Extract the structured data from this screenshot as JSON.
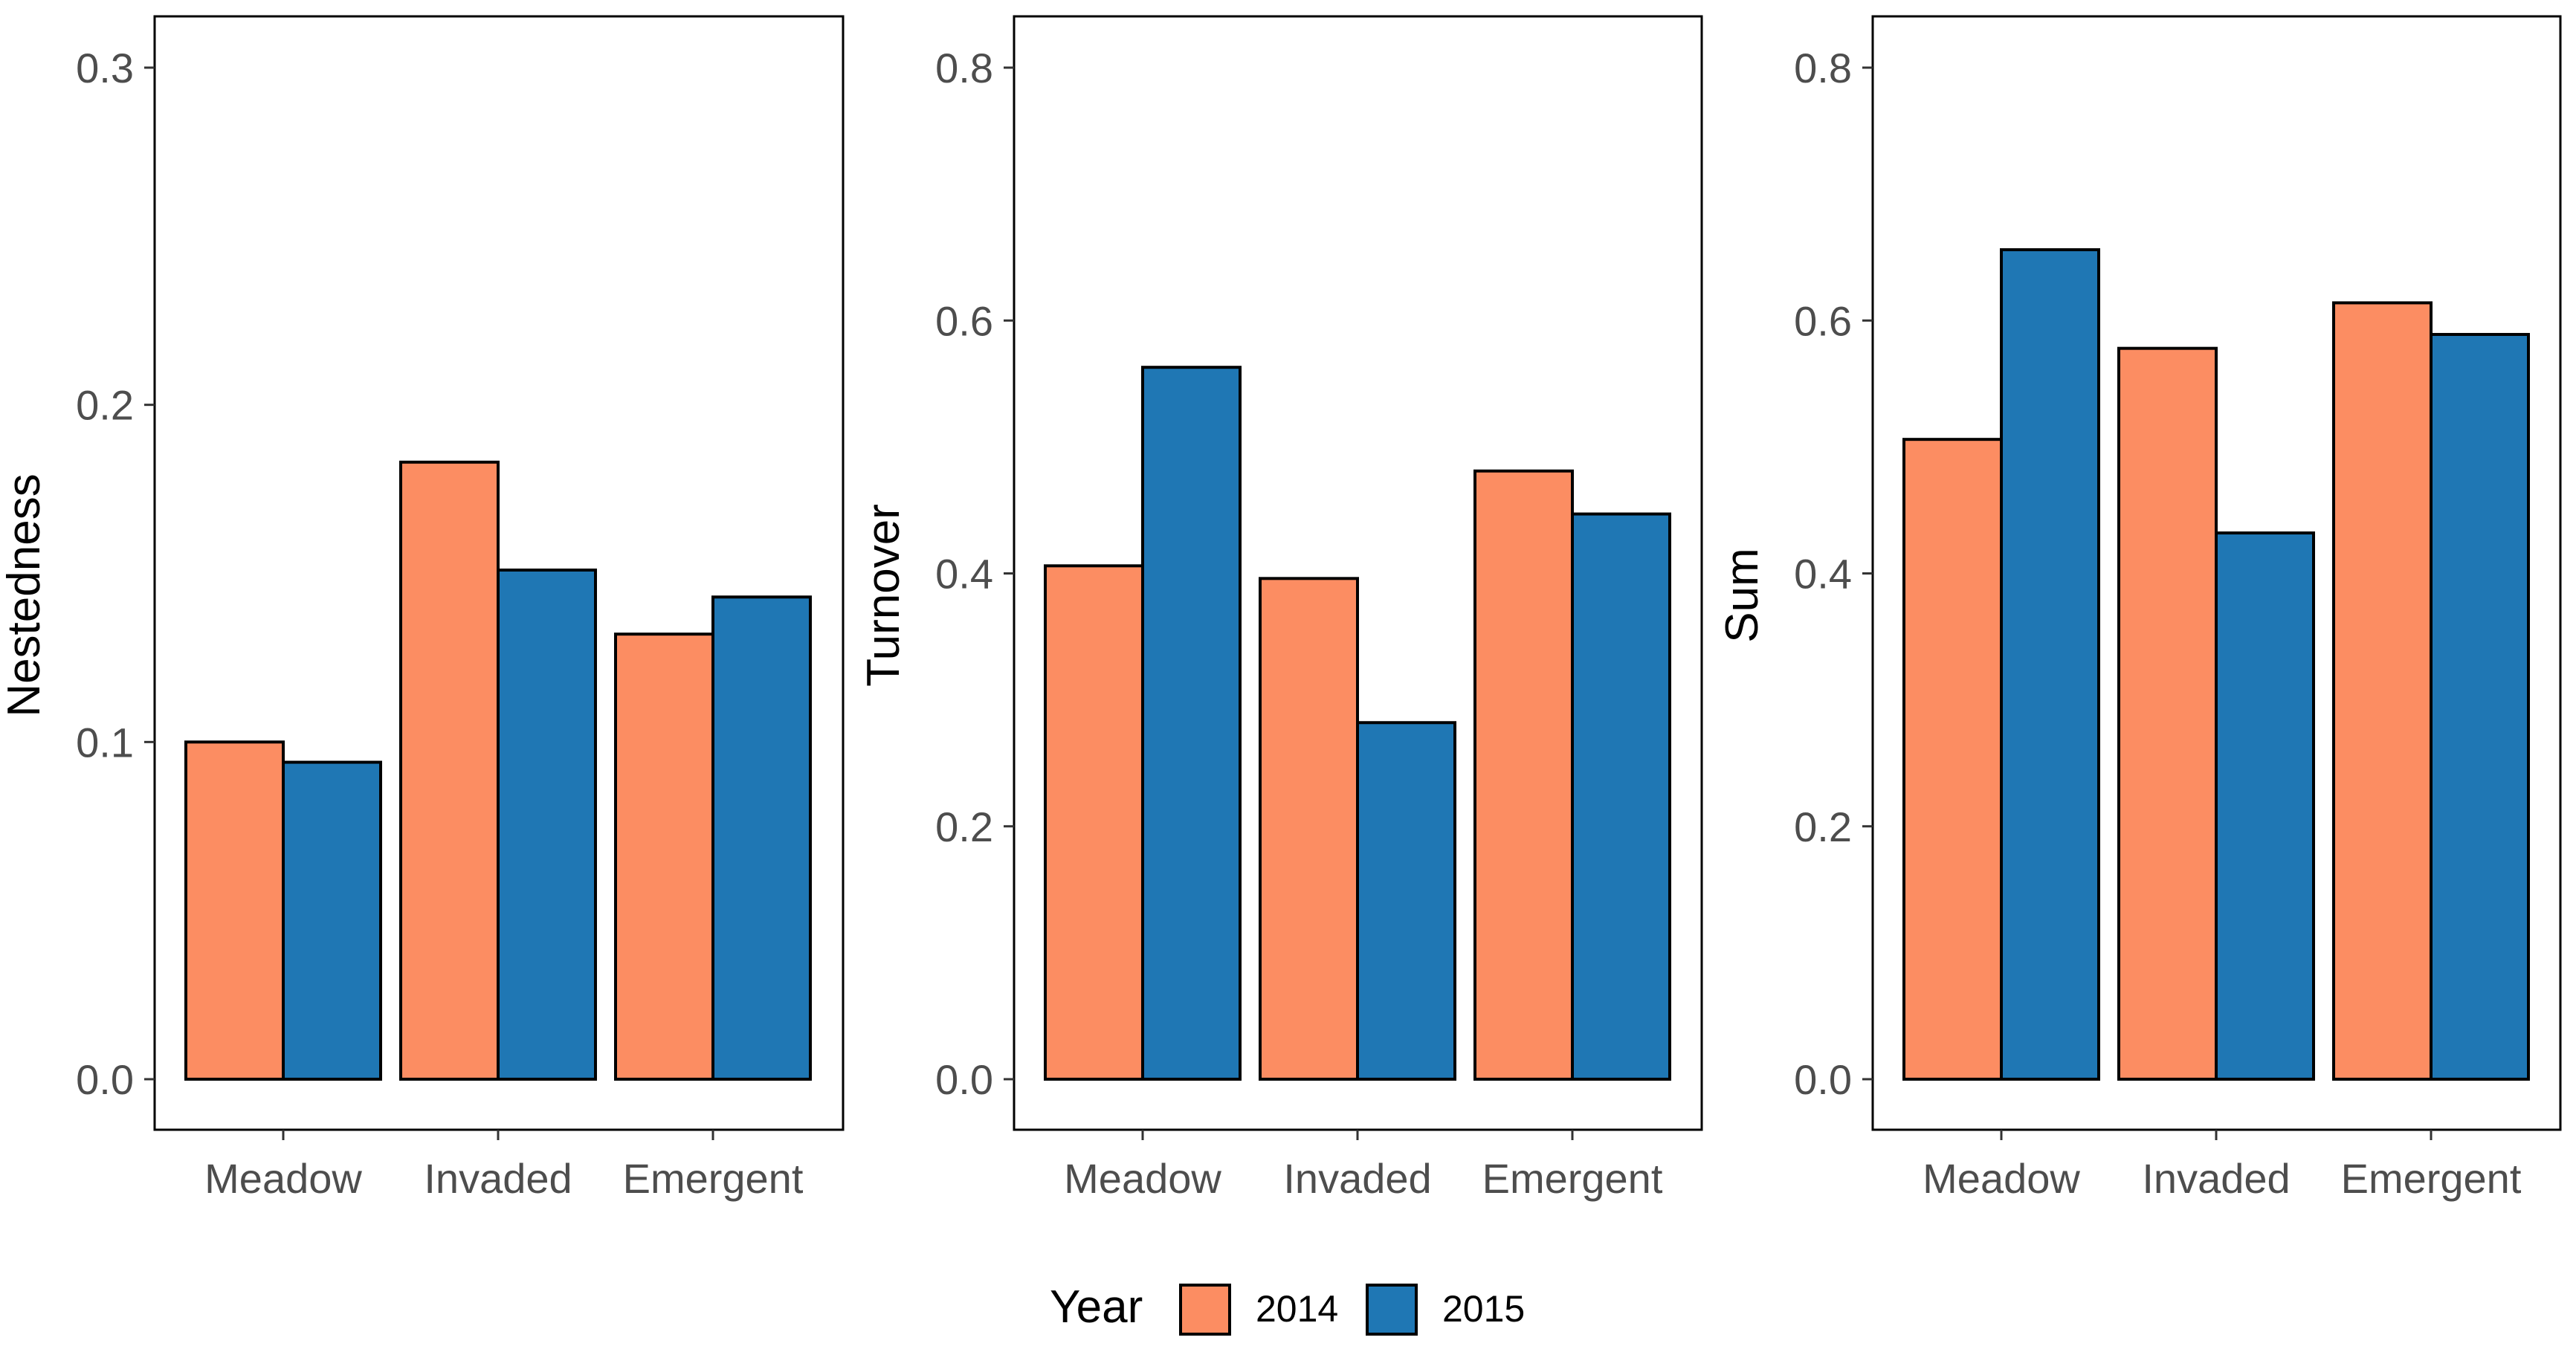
{
  "chart_data": [
    {
      "type": "bar",
      "categories": [
        "Meadow",
        "Invaded",
        "Emergent"
      ],
      "ylabel": "Nestedness",
      "ylim": [
        0,
        0.315
      ],
      "yticks": [
        0.0,
        0.1,
        0.2,
        0.3
      ],
      "ytick_labels": [
        "0.0",
        "0.1",
        "0.2",
        "0.3"
      ],
      "series": [
        {
          "name": "2014",
          "values": [
            0.1,
            0.183,
            0.132
          ]
        },
        {
          "name": "2015",
          "values": [
            0.094,
            0.151,
            0.143
          ]
        }
      ],
      "grid": false
    },
    {
      "type": "bar",
      "categories": [
        "Meadow",
        "Invaded",
        "Emergent"
      ],
      "ylabel": "Turnover",
      "ylim": [
        0,
        0.84
      ],
      "yticks": [
        0.0,
        0.2,
        0.4,
        0.6,
        0.8
      ],
      "ytick_labels": [
        "0.0",
        "0.2",
        "0.4",
        "0.6",
        "0.8"
      ],
      "series": [
        {
          "name": "2014",
          "values": [
            0.406,
            0.396,
            0.481
          ]
        },
        {
          "name": "2015",
          "values": [
            0.563,
            0.282,
            0.447
          ]
        }
      ],
      "grid": false
    },
    {
      "type": "bar",
      "categories": [
        "Meadow",
        "Invaded",
        "Emergent"
      ],
      "ylabel": "Sum",
      "ylim": [
        0,
        0.84
      ],
      "yticks": [
        0.0,
        0.2,
        0.4,
        0.6,
        0.8
      ],
      "ytick_labels": [
        "0.0",
        "0.2",
        "0.4",
        "0.6",
        "0.8"
      ],
      "series": [
        {
          "name": "2014",
          "values": [
            0.506,
            0.578,
            0.614
          ]
        },
        {
          "name": "2015",
          "values": [
            0.656,
            0.432,
            0.589
          ]
        }
      ],
      "grid": false
    }
  ],
  "legend": {
    "title": "Year",
    "position": "bottom",
    "items": [
      {
        "label": "2014",
        "color": "#FC8D62"
      },
      {
        "label": "2015",
        "color": "#1F77B4"
      }
    ]
  },
  "colors": {
    "series_2014": "#FC8D62",
    "series_2015": "#1F77B4",
    "bar_outline": "#000000",
    "tick_text": "#4d4d4d"
  }
}
